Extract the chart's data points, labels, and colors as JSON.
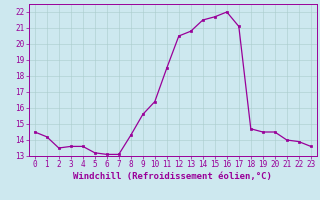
{
  "x": [
    0,
    1,
    2,
    3,
    4,
    5,
    6,
    7,
    8,
    9,
    10,
    11,
    12,
    13,
    14,
    15,
    16,
    17,
    18,
    19,
    20,
    21,
    22,
    23
  ],
  "y": [
    14.5,
    14.2,
    13.5,
    13.6,
    13.6,
    13.2,
    13.1,
    13.1,
    14.3,
    15.6,
    16.4,
    18.5,
    20.5,
    20.8,
    21.5,
    21.7,
    22.0,
    21.1,
    14.7,
    14.5,
    14.5,
    14.0,
    13.9,
    13.6
  ],
  "line_color": "#990099",
  "marker": "s",
  "marker_size": 2,
  "xlabel": "Windchill (Refroidissement éolien,°C)",
  "xlabel_fontsize": 6.5,
  "ylim": [
    13,
    22.5
  ],
  "yticks": [
    13,
    14,
    15,
    16,
    17,
    18,
    19,
    20,
    21,
    22
  ],
  "xticks": [
    0,
    1,
    2,
    3,
    4,
    5,
    6,
    7,
    8,
    9,
    10,
    11,
    12,
    13,
    14,
    15,
    16,
    17,
    18,
    19,
    20,
    21,
    22,
    23
  ],
  "bg_color": "#cde8ef",
  "grid_color": "#aacccc",
  "tick_fontsize": 5.5,
  "linewidth": 0.9
}
